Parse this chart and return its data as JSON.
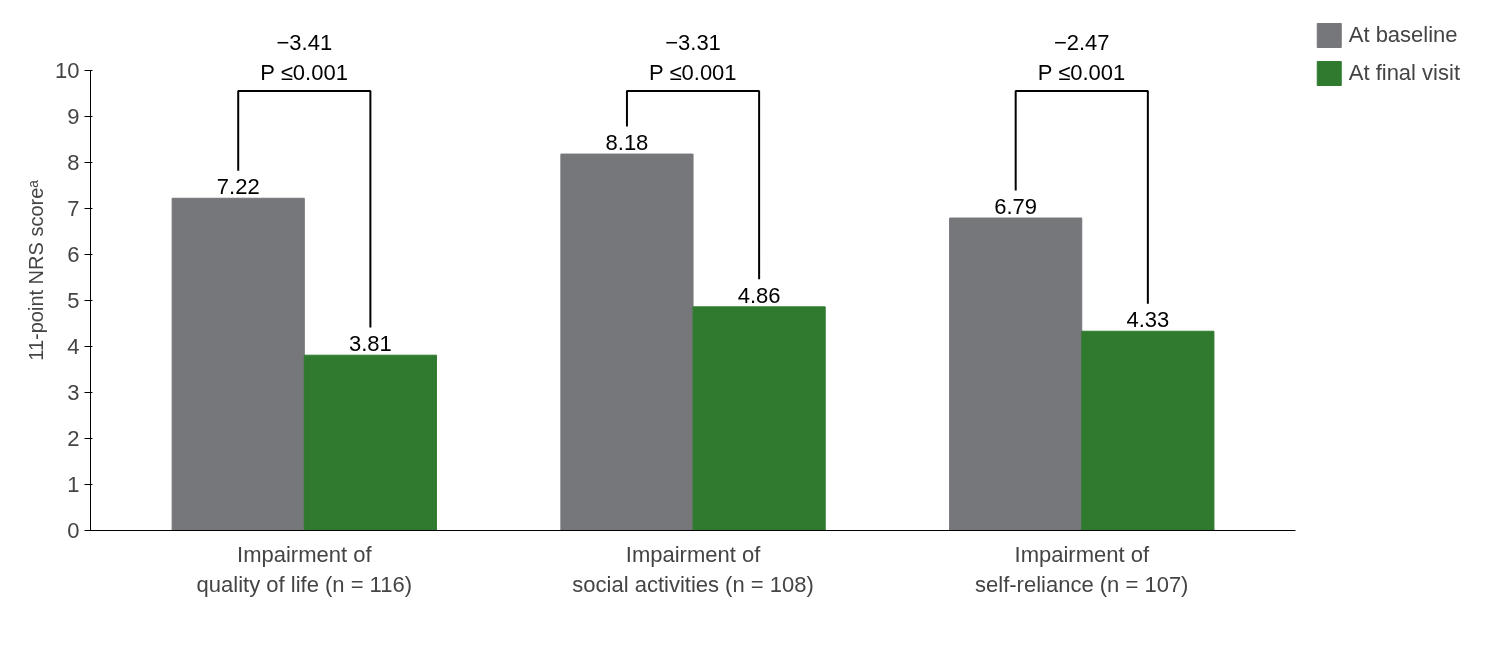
{
  "chart_data": {
    "type": "bar",
    "ylabel": "11-point NRS scoreᵃ",
    "categories": [
      "Impairment of\nquality of life (n = 116)",
      "Impairment of\nsocial activities (n = 108)",
      "Impairment of\nself-reliance (n = 107)"
    ],
    "series": [
      {
        "name": "At baseline",
        "color": "#76777b",
        "values": [
          7.22,
          8.18,
          6.79
        ]
      },
      {
        "name": "At final visit",
        "color": "#2f7a2f",
        "values": [
          3.81,
          4.86,
          4.33
        ]
      }
    ],
    "ylim": [
      0,
      10
    ],
    "yticks": [
      0,
      1,
      2,
      3,
      4,
      5,
      6,
      7,
      8,
      9,
      10
    ],
    "data_labels": true,
    "grid": false,
    "legend": "top right",
    "annotations": [
      "−3.41\nP ≤0.001",
      "−3.31\nP ≤0.001",
      "−2.47\nP ≤0.001"
    ]
  }
}
